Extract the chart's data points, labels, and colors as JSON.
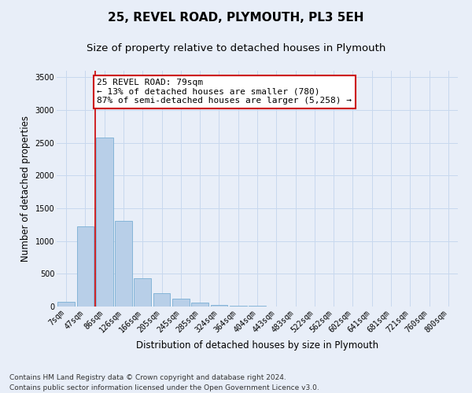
{
  "title": "25, REVEL ROAD, PLYMOUTH, PL3 5EH",
  "subtitle": "Size of property relative to detached houses in Plymouth",
  "xlabel": "Distribution of detached houses by size in Plymouth",
  "ylabel": "Number of detached properties",
  "categories": [
    "7sqm",
    "47sqm",
    "86sqm",
    "126sqm",
    "166sqm",
    "205sqm",
    "245sqm",
    "285sqm",
    "324sqm",
    "364sqm",
    "404sqm",
    "443sqm",
    "483sqm",
    "522sqm",
    "562sqm",
    "602sqm",
    "641sqm",
    "681sqm",
    "721sqm",
    "760sqm",
    "800sqm"
  ],
  "values": [
    70,
    1220,
    2580,
    1310,
    430,
    205,
    115,
    65,
    30,
    15,
    10,
    5,
    5,
    2,
    2,
    2,
    1,
    1,
    0,
    0,
    3
  ],
  "bar_color": "#b8cfe8",
  "bar_edge_color": "#7aafd4",
  "grid_color": "#c8d8ee",
  "annotation_box_text": "25 REVEL ROAD: 79sqm\n← 13% of detached houses are smaller (780)\n87% of semi-detached houses are larger (5,258) →",
  "annotation_box_color": "#ffffff",
  "annotation_box_edge_color": "#cc0000",
  "annotation_line_color": "#cc0000",
  "ylim": [
    0,
    3600
  ],
  "yticks": [
    0,
    500,
    1000,
    1500,
    2000,
    2500,
    3000,
    3500
  ],
  "footer_line1": "Contains HM Land Registry data © Crown copyright and database right 2024.",
  "footer_line2": "Contains public sector information licensed under the Open Government Licence v3.0.",
  "title_fontsize": 11,
  "subtitle_fontsize": 9.5,
  "axis_label_fontsize": 8.5,
  "tick_fontsize": 7,
  "annotation_fontsize": 8,
  "footer_fontsize": 6.5,
  "background_color": "#e8eef8",
  "plot_background_color": "#e8eef8"
}
